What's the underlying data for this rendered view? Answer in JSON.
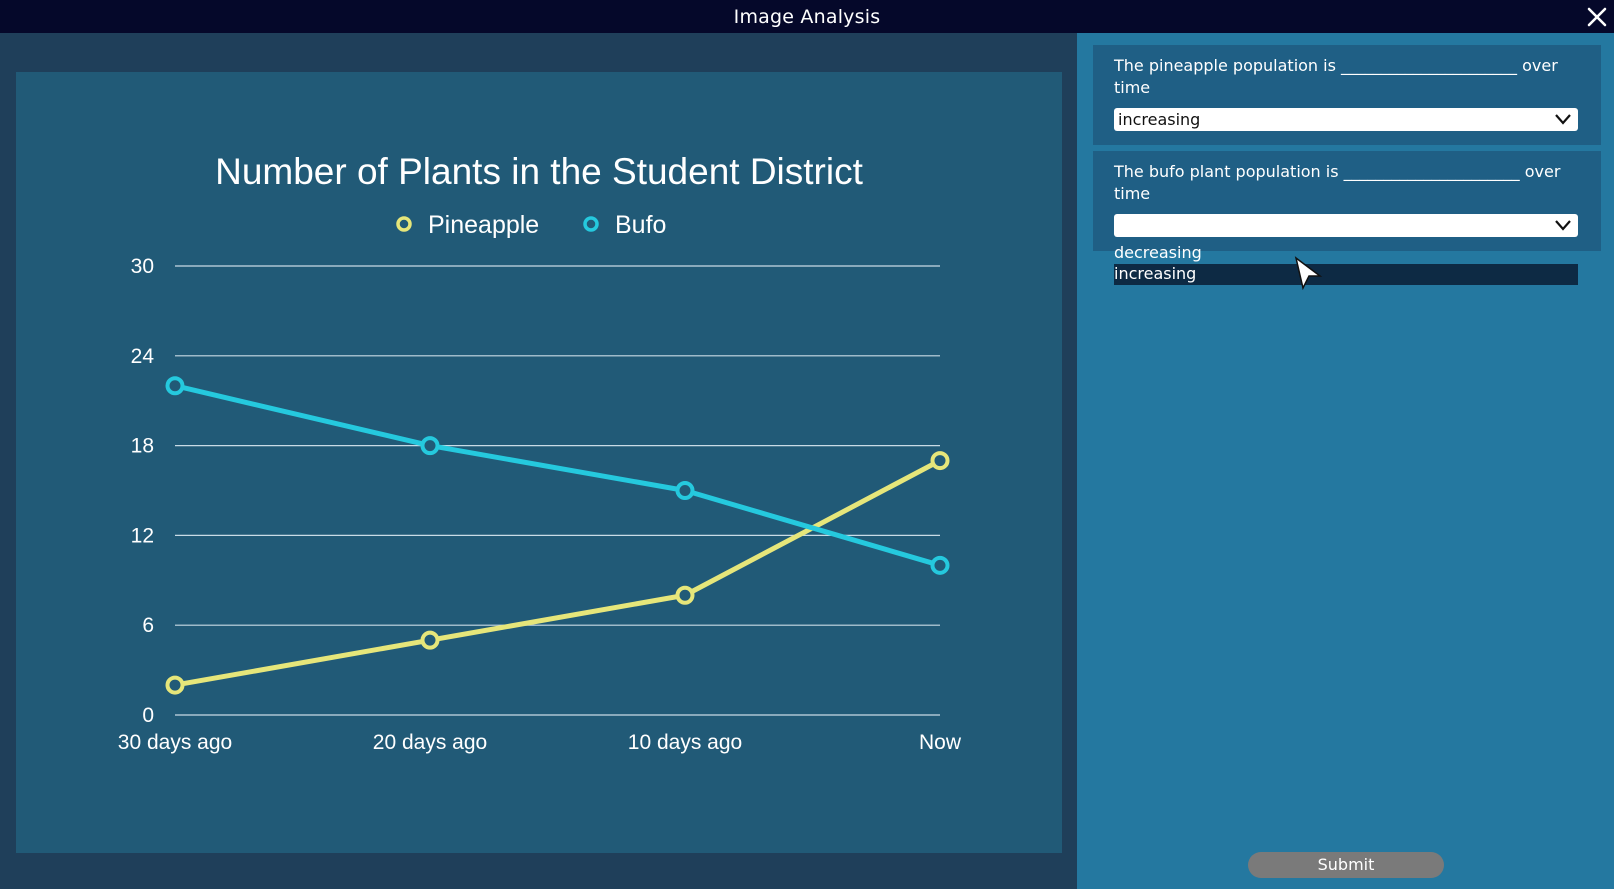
{
  "window": {
    "title": "Image Analysis"
  },
  "icons": {
    "close": "close-icon",
    "chevron": "chevron-down-icon",
    "cursor": "mouse-pointer-icon"
  },
  "colors": {
    "titlebar": "#05082a",
    "panel_right": "#2478a0",
    "question_box": "#1f5f85",
    "chart_bg": "#215a77",
    "pineapple": "#e6e67a",
    "bufo": "#25c9de",
    "submit": "#7a7a7a"
  },
  "questions": [
    {
      "text": "The pineapple population is ______________________ over time",
      "selected": "increasing"
    },
    {
      "text": "The bufo plant population is ______________________ over time",
      "selected": ""
    }
  ],
  "dropdown": {
    "options": [
      "decreasing",
      "increasing"
    ],
    "highlighted": "increasing"
  },
  "submit_label": "Submit",
  "chart_data": {
    "type": "line",
    "title": "Number of Plants in the Student District",
    "categories": [
      "30 days ago",
      "20 days ago",
      "10 days ago",
      "Now"
    ],
    "series": [
      {
        "name": "Pineapple",
        "values": [
          2,
          5,
          8,
          17
        ]
      },
      {
        "name": "Bufo",
        "values": [
          22,
          18,
          15,
          10
        ]
      }
    ],
    "ylim": [
      0,
      30
    ],
    "yticks": [
      0,
      6,
      12,
      18,
      24,
      30
    ],
    "grid": true,
    "legend": "top-center"
  }
}
